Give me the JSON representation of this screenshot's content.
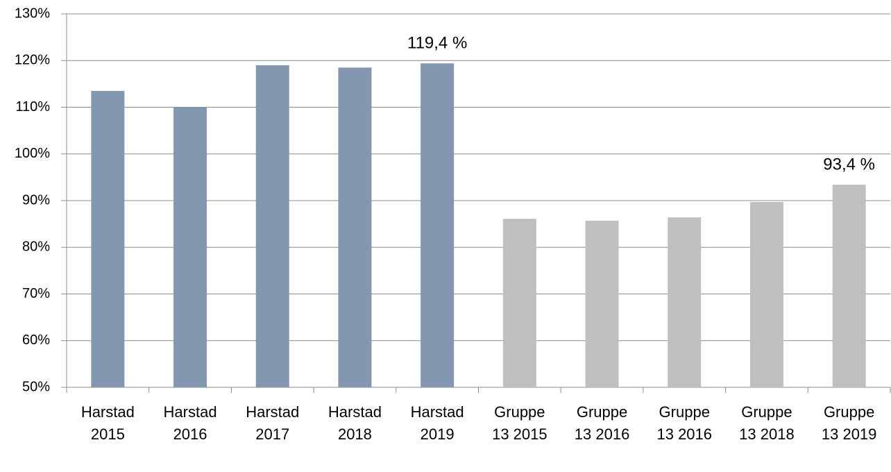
{
  "chart_data": {
    "type": "bar",
    "categories": [
      "Harstad 2015",
      "Harstad 2016",
      "Harstad 2017",
      "Harstad 2018",
      "Harstad 2019",
      "Gruppe 13 2015",
      "Gruppe 13 2016",
      "Gruppe 13 2016",
      "Gruppe 13 2018",
      "Gruppe 13 2019"
    ],
    "values": [
      113.5,
      110,
      119,
      118.5,
      119.4,
      86.1,
      85.7,
      86.4,
      89.7,
      93.4
    ],
    "value_labels": [
      null,
      null,
      null,
      null,
      "119,4 %",
      null,
      null,
      null,
      null,
      "93,4 %"
    ],
    "colors": [
      "#8497b0",
      "#8497b0",
      "#8497b0",
      "#8497b0",
      "#8497b0",
      "#bfbfbf",
      "#bfbfbf",
      "#bfbfbf",
      "#bfbfbf",
      "#bfbfbf"
    ],
    "ylim": [
      50,
      130
    ],
    "yticks": [
      {
        "value": 50,
        "label": "50%"
      },
      {
        "value": 60,
        "label": "60%"
      },
      {
        "value": 70,
        "label": "70%"
      },
      {
        "value": 80,
        "label": "80%"
      },
      {
        "value": 90,
        "label": "90%"
      },
      {
        "value": 100,
        "label": "100%"
      },
      {
        "value": 110,
        "label": "110%"
      },
      {
        "value": 120,
        "label": "120%"
      },
      {
        "value": 130,
        "label": "130%"
      }
    ],
    "grid": true
  }
}
